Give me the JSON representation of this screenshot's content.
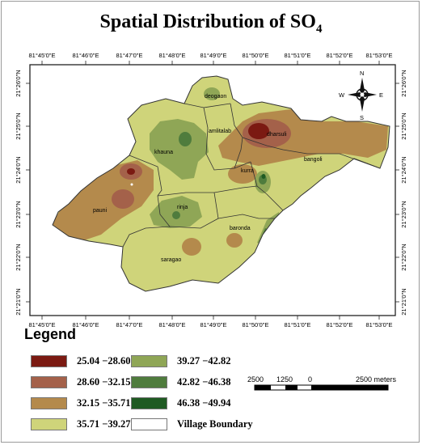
{
  "title": {
    "main": "Spatial Distribution of SO",
    "sub": "4"
  },
  "longitude_ticks": [
    "81°45'0\"E",
    "81°46'0\"E",
    "81°47'0\"E",
    "81°48'0\"E",
    "81°49'0\"E",
    "81°50'0\"E",
    "81°51'0\"E",
    "81°52'0\"E",
    "81°53'0\"E"
  ],
  "latitude_ticks": [
    "21°26'0\"N",
    "21°25'0\"N",
    "21°24'0\"N",
    "21°23'0\"N",
    "21°22'0\"N",
    "21°21'0\"N"
  ],
  "villages": [
    "deogaon",
    "amlitalab",
    "dharsuli",
    "khauna",
    "kurra",
    "bangoli",
    "pauni",
    "rinja",
    "baronda",
    "saragao"
  ],
  "compass": {
    "n": "N",
    "s": "S",
    "e": "E",
    "w": "W"
  },
  "legend": {
    "title": "Legend",
    "items": [
      {
        "label": "25.04 −28.60",
        "color": "#7b1a12"
      },
      {
        "label": "28.60 −32.15",
        "color": "#a4614a"
      },
      {
        "label": "32.15 −35.71",
        "color": "#b48a4c"
      },
      {
        "label": "35.71 −39.27",
        "color": "#cfd47a"
      },
      {
        "label": "39.27 −42.82",
        "color": "#8fa656"
      },
      {
        "label": "42.82 −46.38",
        "color": "#4f7c3d"
      },
      {
        "label": "46.38 −49.94",
        "color": "#1f5a22"
      },
      {
        "label": "Village Boundary",
        "color": "#ffffff"
      }
    ]
  },
  "scale_bar": {
    "labels": [
      "2500",
      "1250",
      "0",
      "2500 meters"
    ]
  }
}
